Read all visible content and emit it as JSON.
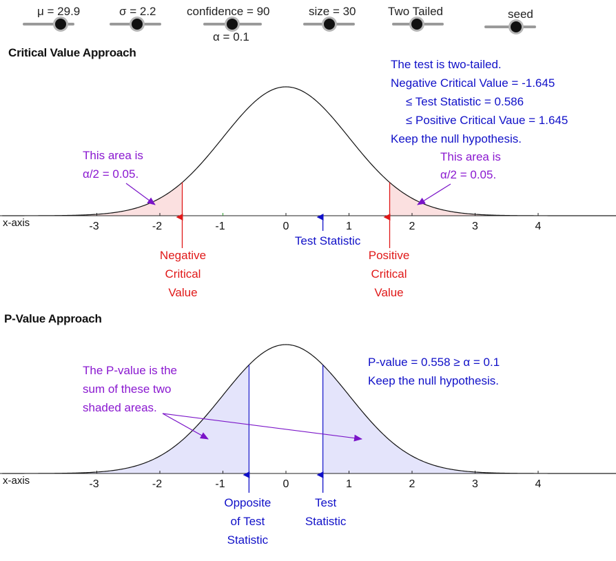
{
  "sliders": [
    {
      "id": "mu",
      "label": "μ = 29.9",
      "sub": ""
    },
    {
      "id": "sigma",
      "label": "σ = 2.2",
      "sub": ""
    },
    {
      "id": "confidence",
      "label": "confidence = 90",
      "sub": "α = 0.1"
    },
    {
      "id": "size",
      "label": "size = 30",
      "sub": ""
    },
    {
      "id": "tails",
      "label": "Two Tailed",
      "sub": ""
    },
    {
      "id": "seed",
      "label": "seed",
      "sub": ""
    }
  ],
  "colors": {
    "blue_text": "#1010c8",
    "red": "#e01818",
    "purple": "#8a18d0",
    "critical_fill": "#fbe0e0",
    "pvalue_fill": "#e4e4fb",
    "green_tick": "#2a9a2a"
  },
  "chart_data": [
    {
      "type": "area",
      "title": "Critical Value Approach",
      "xlabel": "x-axis",
      "x_ticks": [
        "-3",
        "-2",
        "-1",
        "0",
        "1",
        "2",
        "3",
        "4"
      ],
      "x_tick_values": [
        -3,
        -2,
        -1,
        0,
        1,
        2,
        3,
        4
      ],
      "xlim": [
        -4.5,
        5.3
      ],
      "curve": "standard normal density",
      "negative_critical_value": -1.645,
      "positive_critical_value": 1.645,
      "test_statistic": 0.586,
      "alpha_half": 0.05,
      "labels": {
        "negative_critical": [
          "Negative",
          "Critical",
          "Value"
        ],
        "positive_critical": [
          "Positive",
          "Critical",
          "Value"
        ],
        "test_statistic": "Test Statistic"
      },
      "annotations": {
        "left_area": [
          "This area is",
          "α/2 = 0.05."
        ],
        "right_area": [
          "This area is",
          "α/2 = 0.05."
        ],
        "result": [
          "The test is two-tailed.",
          "Negative Critical Value = -1.645",
          "≤ Test Statistic = 0.586",
          "≤ Positive Critical Vaue = 1.645",
          "Keep the null hypothesis."
        ]
      }
    },
    {
      "type": "area",
      "title": "P-Value Approach",
      "xlabel": "x-axis",
      "x_ticks": [
        "-3",
        "-2",
        "-1",
        "0",
        "1",
        "2",
        "3",
        "4"
      ],
      "x_tick_values": [
        -3,
        -2,
        -1,
        0,
        1,
        2,
        3,
        4
      ],
      "xlim": [
        -4.5,
        5.3
      ],
      "curve": "standard normal density",
      "test_statistic": 0.586,
      "opposite_test_statistic": -0.586,
      "p_value": 0.558,
      "alpha": 0.1,
      "labels": {
        "opposite": [
          "Opposite",
          "of Test",
          "Statistic"
        ],
        "test_statistic": [
          "Test",
          "Statistic"
        ]
      },
      "annotations": {
        "explanation": [
          "The P-value is the",
          "sum of these two",
          "shaded areas."
        ],
        "result": [
          "P-value = 0.558 ≥ α = 0.1",
          "Keep the null hypothesis."
        ]
      }
    }
  ]
}
